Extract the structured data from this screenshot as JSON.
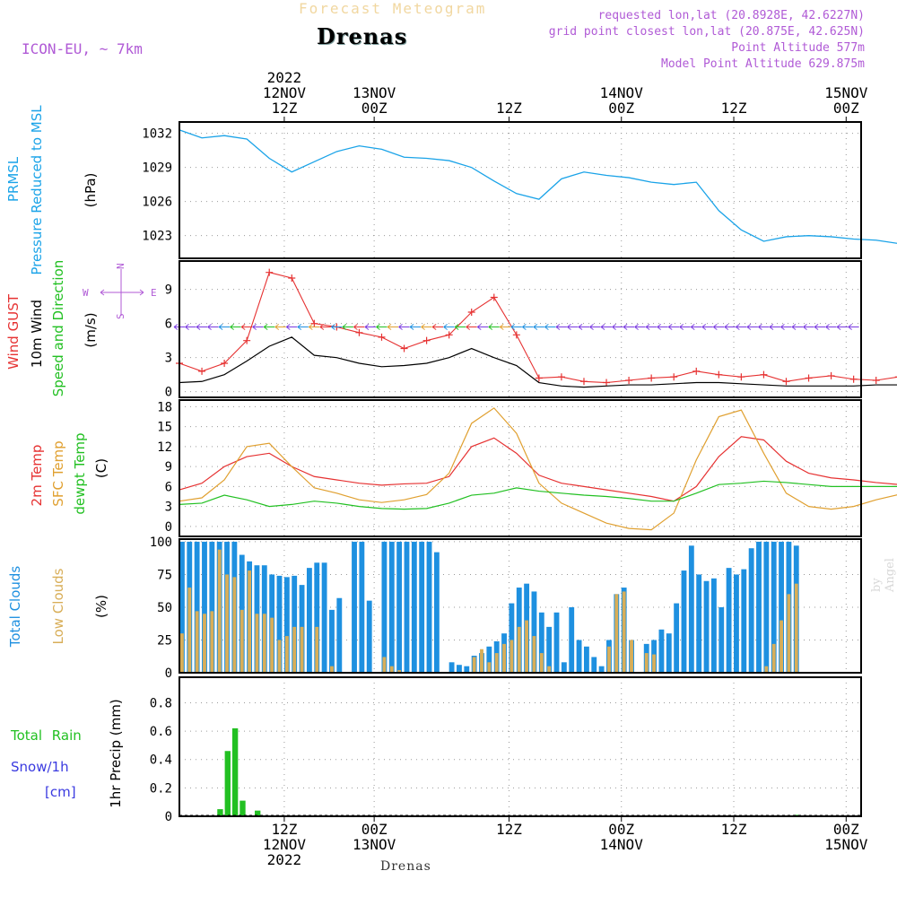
{
  "header": {
    "figure_title": "Forecast Meteogram",
    "station": "Drenas",
    "model": "ICON-EU, ~ 7km",
    "requested_point": "requested lon,lat (20.8928E, 42.6227N)",
    "grid_point": "grid point closest lon,lat (20.875E, 42.625N)",
    "point_altitude": "Point Altitude 577m",
    "model_altitude": "Model Point Altitude 629.875m",
    "byline": "by Angel",
    "footer_station": "Drenas"
  },
  "colors": {
    "pressure": "#1aa3e8",
    "gust": "#e63232",
    "wind": "#000000",
    "t2m": "#e63232",
    "sfc": "#e0a030",
    "dew": "#22c022",
    "clouds_total": "#1e90e0",
    "clouds_low": "#d8ae58",
    "rain": "#22c022",
    "snow": "#3a3ae0",
    "wind_dir_label": "#b05ad6"
  },
  "chart_data": [
    {
      "type": "line",
      "panel": "pressure",
      "ylabel_lines": [
        "PRMSL",
        "Pressure Reduced to MSL",
        "(hPa)"
      ],
      "ylim": [
        1021,
        1033
      ],
      "yticks": [
        1023,
        1026,
        1029,
        1032
      ],
      "x_hours": [
        0,
        3,
        6,
        9,
        12,
        15,
        18,
        21,
        24,
        27,
        30,
        33,
        36,
        39,
        42,
        45,
        48,
        51,
        54,
        57,
        60,
        63,
        66,
        69,
        72,
        75,
        78,
        81,
        84,
        87,
        90,
        93,
        96
      ],
      "series": [
        {
          "name": "PRMSL",
          "values": [
            1032.3,
            1031.6,
            1031.8,
            1031.5,
            1029.8,
            1028.6,
            1029.5,
            1030.4,
            1030.9,
            1030.6,
            1029.9,
            1029.8,
            1029.6,
            1029.0,
            1027.8,
            1026.7,
            1026.2,
            1028.0,
            1028.6,
            1028.3,
            1028.1,
            1027.7,
            1027.5,
            1027.7,
            1025.2,
            1023.5,
            1022.5,
            1022.9,
            1023.0,
            1022.9,
            1022.7,
            1022.6,
            1022.3
          ]
        }
      ]
    },
    {
      "type": "line",
      "panel": "wind",
      "ylabel_lines": [
        "Wind GUST",
        "10m Wind",
        "Speed and Direction",
        "(m/s)"
      ],
      "ylim": [
        -0.5,
        11.5
      ],
      "yticks": [
        0,
        3,
        6,
        9
      ],
      "x_hours": [
        0,
        3,
        6,
        9,
        12,
        15,
        18,
        21,
        24,
        27,
        30,
        33,
        36,
        39,
        42,
        45,
        48,
        51,
        54,
        57,
        60,
        63,
        66,
        69,
        72,
        75,
        78,
        81,
        84,
        87,
        90,
        93,
        96
      ],
      "series": [
        {
          "name": "Wind GUST",
          "values": [
            2.5,
            1.8,
            2.5,
            4.5,
            10.5,
            10.0,
            6.0,
            5.7,
            5.2,
            4.8,
            3.8,
            4.5,
            5.0,
            7.0,
            8.3,
            5.0,
            1.2,
            1.3,
            0.9,
            0.8,
            1.0,
            1.2,
            1.3,
            1.8,
            1.5,
            1.3,
            1.5,
            0.9,
            1.2,
            1.4,
            1.1,
            1.0,
            1.3
          ]
        },
        {
          "name": "10m Wind",
          "values": [
            0.8,
            0.9,
            1.5,
            2.7,
            4.0,
            4.8,
            3.2,
            3.0,
            2.5,
            2.2,
            2.3,
            2.5,
            3.0,
            3.8,
            3.0,
            2.3,
            0.8,
            0.5,
            0.4,
            0.5,
            0.6,
            0.6,
            0.7,
            0.8,
            0.8,
            0.7,
            0.6,
            0.5,
            0.5,
            0.5,
            0.5,
            0.6,
            0.6
          ]
        }
      ],
      "direction_legend": {
        "north": "N",
        "south": "S",
        "west": "W",
        "east": "E"
      }
    },
    {
      "type": "line",
      "panel": "temperature",
      "ylabel_lines": [
        "2m Temp",
        "SFC Temp",
        "dewpt Temp",
        "(C)"
      ],
      "ylim": [
        -1.5,
        19
      ],
      "yticks": [
        0,
        3,
        6,
        9,
        12,
        15,
        18
      ],
      "x_hours": [
        0,
        3,
        6,
        9,
        12,
        15,
        18,
        21,
        24,
        27,
        30,
        33,
        36,
        39,
        42,
        45,
        48,
        51,
        54,
        57,
        60,
        63,
        66,
        69,
        72,
        75,
        78,
        81,
        84,
        87,
        90,
        93,
        96
      ],
      "series": [
        {
          "name": "2m Temp",
          "values": [
            5.5,
            6.5,
            9.0,
            10.5,
            11.0,
            9.0,
            7.5,
            7.0,
            6.5,
            6.2,
            6.4,
            6.5,
            7.5,
            12.0,
            13.3,
            11.0,
            7.7,
            6.5,
            6.0,
            5.5,
            5.0,
            4.5,
            3.8,
            6.0,
            10.5,
            13.5,
            13.0,
            9.8,
            8.0,
            7.3,
            7.0,
            6.6,
            6.3
          ]
        },
        {
          "name": "SFC Temp",
          "values": [
            3.8,
            4.3,
            7.0,
            12.0,
            12.5,
            9.0,
            5.8,
            5.0,
            4.0,
            3.6,
            4.0,
            4.8,
            8.0,
            15.5,
            17.8,
            14.0,
            6.5,
            3.5,
            2.0,
            0.5,
            -0.3,
            -0.5,
            2.0,
            10.0,
            16.5,
            17.5,
            11.0,
            5.0,
            3.0,
            2.6,
            3.0,
            4.0,
            4.8
          ]
        },
        {
          "name": "dewpt Temp",
          "values": [
            3.3,
            3.5,
            4.7,
            4.0,
            3.0,
            3.3,
            3.8,
            3.5,
            3.0,
            2.7,
            2.6,
            2.7,
            3.5,
            4.7,
            5.0,
            5.8,
            5.3,
            5.0,
            4.7,
            4.5,
            4.2,
            3.8,
            3.8,
            5.0,
            6.3,
            6.5,
            6.8,
            6.6,
            6.3,
            6.0,
            6.0,
            6.0,
            6.0
          ]
        }
      ]
    },
    {
      "type": "bar",
      "panel": "clouds",
      "ylabel_lines": [
        "Total Clouds",
        "Low Clouds",
        "(%)"
      ],
      "ylim": [
        0,
        102
      ],
      "yticks": [
        0,
        25,
        50,
        75,
        100
      ],
      "x_start": 0,
      "x_step": 1,
      "series": [
        {
          "name": "Total Clouds",
          "values": [
            100,
            100,
            100,
            100,
            100,
            100,
            100,
            100,
            90,
            85,
            82,
            82,
            75,
            74,
            73,
            74,
            67,
            80,
            84,
            84,
            48,
            57,
            0,
            100,
            100,
            55,
            0,
            100,
            100,
            100,
            100,
            100,
            100,
            100,
            92,
            0,
            8,
            6,
            5,
            13,
            15,
            20,
            24,
            30,
            53,
            65,
            68,
            62,
            46,
            35,
            46,
            8,
            50,
            25,
            20,
            12,
            5,
            25,
            60,
            65,
            25,
            0,
            22,
            25,
            33,
            30,
            53,
            78,
            97,
            75,
            70,
            72,
            50,
            80,
            75,
            79,
            95,
            100,
            100,
            100,
            100,
            100,
            97
          ]
        },
        {
          "name": "Low Clouds",
          "values": [
            30,
            65,
            47,
            45,
            47,
            94,
            75,
            73,
            48,
            78,
            45,
            45,
            42,
            25,
            28,
            35,
            35,
            0,
            35,
            0,
            5,
            0,
            0,
            0,
            0,
            0,
            0,
            12,
            5,
            2,
            0,
            0,
            0,
            0,
            0,
            0,
            0,
            0,
            0,
            12,
            18,
            8,
            15,
            22,
            25,
            35,
            40,
            28,
            15,
            5,
            0,
            0,
            0,
            0,
            0,
            0,
            0,
            20,
            60,
            62,
            25,
            0,
            15,
            14,
            0,
            0,
            0,
            0,
            0,
            0,
            0,
            0,
            0,
            0,
            0,
            0,
            0,
            0,
            5,
            22,
            40,
            60,
            68
          ]
        }
      ]
    },
    {
      "type": "bar",
      "panel": "precip",
      "ylabel_lines": [
        "Total Rain",
        "Snow/1h",
        "[cm]",
        "1hr Precip (mm)"
      ],
      "ylim": [
        0,
        0.98
      ],
      "yticks": [
        0,
        0.2,
        0.4,
        0.6,
        0.8
      ],
      "x_start": 0,
      "x_step": 1,
      "series": [
        {
          "name": "Total Rain",
          "values": [
            0,
            0,
            0,
            0,
            0,
            0.05,
            0.46,
            0.62,
            0.11,
            0,
            0.04,
            0,
            0,
            0,
            0,
            0,
            0,
            0,
            0,
            0,
            0,
            0,
            0,
            0,
            0,
            0,
            0,
            0,
            0,
            0,
            0,
            0,
            0,
            0,
            0,
            0,
            0,
            0,
            0,
            0,
            0,
            0,
            0,
            0,
            0,
            0,
            0,
            0,
            0,
            0,
            0,
            0,
            0,
            0,
            0,
            0,
            0,
            0,
            0,
            0,
            0,
            0,
            0,
            0,
            0,
            0,
            0,
            0,
            0,
            0,
            0,
            0,
            0,
            0,
            0,
            0,
            0,
            0,
            0,
            0,
            0,
            0,
            0.01
          ]
        }
      ]
    }
  ],
  "time_axis": {
    "ticks": [
      {
        "hour": 14,
        "top": [
          "2022",
          "12NOV",
          "12Z"
        ],
        "bottom": [
          "12Z",
          "12NOV",
          "2022"
        ]
      },
      {
        "hour": 26,
        "top": [
          "13NOV",
          "00Z"
        ],
        "bottom": [
          "00Z",
          "13NOV"
        ]
      },
      {
        "hour": 44,
        "top": [
          "12Z"
        ],
        "bottom": [
          "12Z"
        ]
      },
      {
        "hour": 59,
        "top": [
          "14NOV",
          "00Z"
        ],
        "bottom": [
          "00Z",
          "14NOV"
        ]
      },
      {
        "hour": 74,
        "top": [
          "12Z"
        ],
        "bottom": [
          "12Z"
        ]
      },
      {
        "hour": 89,
        "top": [
          "15NOV",
          "00Z"
        ],
        "bottom": [
          "00Z",
          "15NOV"
        ]
      }
    ]
  }
}
